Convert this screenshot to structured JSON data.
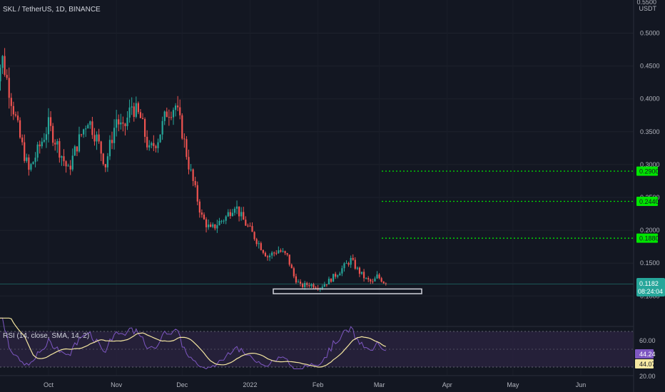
{
  "header": {
    "symbol_title": "SKL / TetherUS, 1D, BINANCE",
    "price_unit": "USDT",
    "top_price_label": "0.5500"
  },
  "price_axis": {
    "ticks": [
      "0.5000",
      "0.4500",
      "0.4000",
      "0.3500",
      "0.3000",
      "0.2500",
      "0.2000",
      "0.1500",
      "0.1000"
    ]
  },
  "time_axis": {
    "labels": [
      "Oct",
      "Nov",
      "Dec",
      "2022",
      "Feb",
      "Mar",
      "Apr",
      "May",
      "Jun"
    ]
  },
  "targets": [
    {
      "label": "0.2900",
      "value": 0.29
    },
    {
      "label": "0.2440",
      "value": 0.244
    },
    {
      "label": "0.1880",
      "value": 0.188
    }
  ],
  "last_price": {
    "label": "0.1182",
    "countdown": "08:24:04",
    "value": 0.1182
  },
  "support_box": {
    "low": 0.1035,
    "high": 0.1107
  },
  "rsi": {
    "title": "RSI (14, close, SMA, 14, 2)",
    "upper_label": "60.00",
    "lower_label": "20.00",
    "rsi_value": "44.24",
    "sma_value": "44.07"
  },
  "colors": {
    "background": "#131722",
    "up": "#26a69a",
    "down": "#ef5350",
    "target_line": "#00e600",
    "rsi_line": "#7e57c2",
    "rsi_sma": "#f5e7a1",
    "rsi_band": "#2a2340"
  },
  "chart_data": {
    "type": "candlestick",
    "title": "SKL / TetherUS, 1D, BINANCE",
    "ylabel": "USDT",
    "ylim": [
      0.09,
      0.55
    ],
    "path": [
      [
        "2021-09-06",
        0.42
      ],
      [
        "2021-09-10",
        0.46
      ],
      [
        "2021-09-14",
        0.4
      ],
      [
        "2021-09-18",
        0.34
      ],
      [
        "2021-09-22",
        0.29
      ],
      [
        "2021-09-26",
        0.32
      ],
      [
        "2021-10-01",
        0.36
      ],
      [
        "2021-10-05",
        0.33
      ],
      [
        "2021-10-10",
        0.29
      ],
      [
        "2021-10-14",
        0.33
      ],
      [
        "2021-10-19",
        0.37
      ],
      [
        "2021-10-23",
        0.34
      ],
      [
        "2021-10-27",
        0.3
      ],
      [
        "2021-11-01",
        0.37
      ],
      [
        "2021-11-04",
        0.35
      ],
      [
        "2021-11-08",
        0.39
      ],
      [
        "2021-11-12",
        0.37
      ],
      [
        "2021-11-16",
        0.32
      ],
      [
        "2021-11-20",
        0.34
      ],
      [
        "2021-11-24",
        0.38
      ],
      [
        "2021-11-28",
        0.39
      ],
      [
        "2021-12-01",
        0.35
      ],
      [
        "2021-12-04",
        0.3
      ],
      [
        "2021-12-07",
        0.26
      ],
      [
        "2021-12-10",
        0.22
      ],
      [
        "2021-12-14",
        0.2
      ],
      [
        "2021-12-17",
        0.21
      ],
      [
        "2021-12-21",
        0.22
      ],
      [
        "2021-12-25",
        0.24
      ],
      [
        "2021-12-28",
        0.22
      ],
      [
        "2022-01-01",
        0.2
      ],
      [
        "2022-01-05",
        0.18
      ],
      [
        "2022-01-09",
        0.16
      ],
      [
        "2022-01-14",
        0.17
      ],
      [
        "2022-01-18",
        0.16
      ],
      [
        "2022-01-21",
        0.13
      ],
      [
        "2022-01-24",
        0.115
      ],
      [
        "2022-01-28",
        0.118
      ],
      [
        "2022-02-02",
        0.114
      ],
      [
        "2022-02-06",
        0.123
      ],
      [
        "2022-02-10",
        0.135
      ],
      [
        "2022-02-13",
        0.145
      ],
      [
        "2022-02-16",
        0.155
      ],
      [
        "2022-02-19",
        0.14
      ],
      [
        "2022-02-23",
        0.125
      ],
      [
        "2022-02-26",
        0.12
      ],
      [
        "2022-02-28",
        0.13
      ],
      [
        "2022-03-02",
        0.125
      ],
      [
        "2022-03-04",
        0.1182
      ]
    ],
    "levels": [
      0.29,
      0.244,
      0.188
    ],
    "last": 0.1182
  }
}
